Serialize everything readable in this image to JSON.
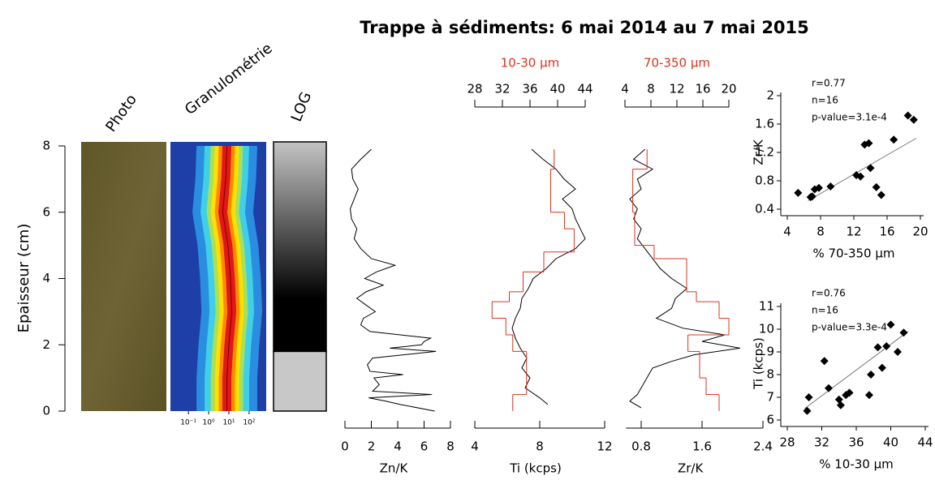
{
  "title": "Trappe à sédiments: 6 mai 2014 au 7 mai 2015",
  "chart_data": [
    {
      "type": "core",
      "ylabel": "Epaisseur (cm)",
      "ylim": [
        0,
        8
      ],
      "yticks": [
        0,
        2,
        4,
        6,
        8
      ],
      "panels": [
        "Photo",
        "Granulométrie",
        "LOG"
      ],
      "granulometry": {
        "xscale": "log",
        "xlim": [
          0.013,
          700
        ],
        "xticks": [
          {
            "value": 0.1,
            "label": "10⁻¹"
          },
          {
            "value": 1,
            "label": "10⁰"
          },
          {
            "value": 10,
            "label": "10¹"
          },
          {
            "value": 100,
            "label": "10²"
          }
        ],
        "depth": [
          0,
          1,
          2,
          3,
          4,
          5,
          6,
          7,
          8
        ],
        "mode": [
          8,
          8,
          10,
          14,
          12,
          9,
          5,
          7,
          8
        ]
      },
      "log_boundary": 1.8
    },
    {
      "type": "line",
      "xlabel": "Zn/K",
      "xlim": [
        0,
        8
      ],
      "xticks": [
        0,
        2,
        4,
        6,
        8
      ],
      "series": [
        {
          "color": "#000000",
          "axis": "bottom",
          "depth": [
            7.9,
            7.6,
            7.3,
            7.0,
            6.7,
            6.4,
            6.1,
            5.8,
            5.5,
            5.2,
            4.9,
            4.6,
            4.4,
            4.2,
            4.0,
            3.8,
            3.6,
            3.4,
            3.2,
            3.0,
            2.8,
            2.6,
            2.4,
            2.2,
            2.1,
            2.0,
            1.9,
            1.8,
            1.6,
            1.4,
            1.2,
            1.1,
            1.0,
            0.8,
            0.6,
            0.5,
            0.4,
            0.3,
            0.2,
            0.0
          ],
          "values": [
            2.0,
            1.2,
            0.5,
            0.6,
            1.0,
            0.7,
            0.4,
            0.5,
            0.9,
            0.7,
            1.2,
            2.0,
            3.8,
            2.4,
            1.5,
            2.9,
            1.6,
            0.9,
            1.6,
            2.3,
            1.4,
            1.2,
            1.9,
            6.5,
            6.0,
            5.8,
            3.4,
            6.9,
            2.1,
            1.7,
            1.9,
            4.4,
            2.2,
            2.6,
            2.1,
            6.6,
            1.8,
            3.1,
            4.2,
            6.8
          ]
        }
      ]
    },
    {
      "type": "line",
      "xlabel": "Ti (kcps)",
      "xlim": [
        4,
        12
      ],
      "xticks": [
        4,
        8,
        12
      ],
      "x2label": "10-30 µm",
      "x2lim": [
        28,
        44
      ],
      "x2ticks": [
        28,
        32,
        36,
        40,
        44
      ],
      "series": [
        {
          "color": "#000000",
          "axis": "bottom",
          "depth": [
            7.9,
            7.6,
            7.3,
            7.0,
            6.7,
            6.4,
            6.1,
            5.8,
            5.5,
            5.2,
            4.9,
            4.6,
            4.3,
            4.0,
            3.7,
            3.4,
            3.1,
            2.8,
            2.5,
            2.2,
            1.9,
            1.6,
            1.3,
            1.0,
            0.7,
            0.4,
            0.2
          ],
          "values": [
            7.5,
            8.2,
            9.0,
            9.5,
            10.2,
            9.4,
            10.0,
            10.2,
            10.5,
            10.8,
            10.2,
            9.0,
            8.4,
            7.6,
            7.3,
            6.9,
            6.8,
            6.5,
            6.3,
            6.5,
            6.8,
            7.2,
            6.9,
            7.4,
            7.1,
            8.0,
            8.5
          ]
        },
        {
          "color": "#d9341c",
          "axis": "top",
          "depth_bins": [
            0,
            0.5,
            1.8,
            2.3,
            2.8,
            3.3,
            3.6,
            4.2,
            4.8,
            5.5,
            6.0,
            7.3,
            7.9
          ],
          "values": [
            33.5,
            35.5,
            33.5,
            32.5,
            30.5,
            33,
            35,
            38,
            42.4,
            41,
            39,
            39.5
          ]
        }
      ]
    },
    {
      "type": "line",
      "xlabel": "Zr/K",
      "xlim": [
        0.6,
        2.4
      ],
      "xticks": [
        0.8,
        1.6,
        2.4
      ],
      "x2label": "70-350 µm",
      "x2lim": [
        4,
        20
      ],
      "x2ticks": [
        4,
        8,
        12,
        16,
        20
      ],
      "series": [
        {
          "color": "#000000",
          "axis": "bottom",
          "depth": [
            7.9,
            7.6,
            7.3,
            7.0,
            6.7,
            6.4,
            6.1,
            5.8,
            5.5,
            5.2,
            4.9,
            4.6,
            4.3,
            4.0,
            3.7,
            3.4,
            3.1,
            2.8,
            2.5,
            2.3,
            2.1,
            1.9,
            1.7,
            1.5,
            1.3,
            1.1,
            0.9,
            0.7,
            0.5,
            0.3,
            0.1
          ],
          "values": [
            0.85,
            0.7,
            0.95,
            0.75,
            0.8,
            0.65,
            0.75,
            0.7,
            0.8,
            0.75,
            0.85,
            0.95,
            1.05,
            1.2,
            1.4,
            1.25,
            1.2,
            1.0,
            1.35,
            1.9,
            1.6,
            2.1,
            1.5,
            1.2,
            0.95,
            0.9,
            0.85,
            0.8,
            0.75,
            0.65,
            0.8
          ]
        },
        {
          "color": "#d9341c",
          "axis": "top",
          "depth_bins": [
            0,
            0.5,
            1.0,
            1.8,
            2.3,
            2.8,
            3.3,
            3.6,
            4.6,
            5.0,
            6.0,
            7.3,
            7.9
          ],
          "values": [
            18.5,
            16.5,
            15.5,
            13.7,
            20,
            18.5,
            15,
            13.5,
            8.5,
            5.5,
            5.2,
            7.4
          ]
        }
      ]
    },
    {
      "type": "scatter",
      "xlabel": "% 70-350 µm",
      "ylabel": "Zr/K",
      "xlim": [
        4,
        20
      ],
      "xticks": [
        4,
        8,
        12,
        16,
        20
      ],
      "ylim": [
        0.4,
        2
      ],
      "yticks": [
        0.4,
        0.8,
        1.2,
        1.6,
        2
      ],
      "annotations": [
        "r=0.77",
        "n=16",
        "p-value=3.1e-4"
      ],
      "x": [
        5.3,
        6.8,
        7.0,
        7.3,
        7.8,
        9.2,
        12.3,
        12.8,
        13.3,
        13.8,
        14.0,
        14.7,
        15.3,
        16.8,
        18.5,
        19.2
      ],
      "y": [
        0.63,
        0.57,
        0.58,
        0.68,
        0.7,
        0.72,
        0.88,
        0.86,
        1.31,
        1.33,
        0.98,
        0.71,
        0.6,
        1.38,
        1.72,
        1.66
      ],
      "trendline": {
        "x": [
          6.5,
          19.5
        ],
        "y": [
          0.52,
          1.4
        ]
      }
    },
    {
      "type": "scatter",
      "xlabel": "% 10-30 µm",
      "ylabel": "Ti (kcps)",
      "xlim": [
        28,
        44
      ],
      "xticks": [
        28,
        32,
        36,
        40,
        44
      ],
      "ylim": [
        6,
        11
      ],
      "yticks": [
        6,
        7,
        8,
        9,
        10,
        11
      ],
      "annotations": [
        "r=0.76",
        "n=16",
        "p-value=3.3e-4"
      ],
      "x": [
        30.3,
        30.5,
        32.3,
        32.8,
        34.0,
        34.2,
        34.8,
        35.2,
        37.5,
        37.7,
        38.5,
        39.0,
        39.5,
        40.0,
        40.8,
        41.5
      ],
      "y": [
        6.4,
        7.0,
        8.6,
        7.4,
        6.9,
        6.65,
        7.1,
        7.2,
        7.1,
        8.0,
        9.2,
        8.3,
        9.25,
        10.2,
        9.0,
        9.85
      ],
      "trendline": {
        "x": [
          30,
          42
        ],
        "y": [
          6.5,
          9.9
        ]
      }
    }
  ]
}
